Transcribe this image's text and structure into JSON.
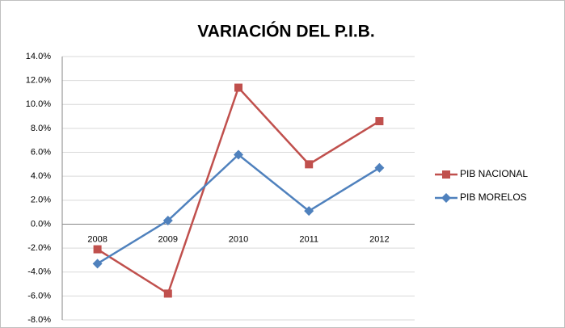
{
  "chart_data": {
    "type": "line",
    "title": "VARIACIÓN DEL P.I.B.",
    "categories": [
      "2008",
      "2009",
      "2010",
      "2011",
      "2012"
    ],
    "series": [
      {
        "name": "PIB NACIONAL",
        "color": "#c0504d",
        "marker": "square",
        "values": [
          -2.1,
          -5.8,
          11.4,
          5.0,
          8.6
        ]
      },
      {
        "name": "PIB MORELOS",
        "color": "#4f81bd",
        "marker": "diamond",
        "values": [
          -3.3,
          0.3,
          5.8,
          1.1,
          4.7
        ]
      }
    ],
    "ylim": [
      -8,
      14
    ],
    "yticks": [
      {
        "value": -8,
        "label": "-8.0%"
      },
      {
        "value": -6,
        "label": "-6.0%"
      },
      {
        "value": -4,
        "label": "-4.0%"
      },
      {
        "value": -2,
        "label": "-2.0%"
      },
      {
        "value": 0,
        "label": "0.0%"
      },
      {
        "value": 2,
        "label": "2.0%"
      },
      {
        "value": 4,
        "label": "4.0%"
      },
      {
        "value": 6,
        "label": "6.0%"
      },
      {
        "value": 8,
        "label": "8.0%"
      },
      {
        "value": 10,
        "label": "10.0%"
      },
      {
        "value": 12,
        "label": "12.0%"
      },
      {
        "value": 14,
        "label": "14.0%"
      }
    ],
    "grid": true,
    "legend": "right"
  }
}
